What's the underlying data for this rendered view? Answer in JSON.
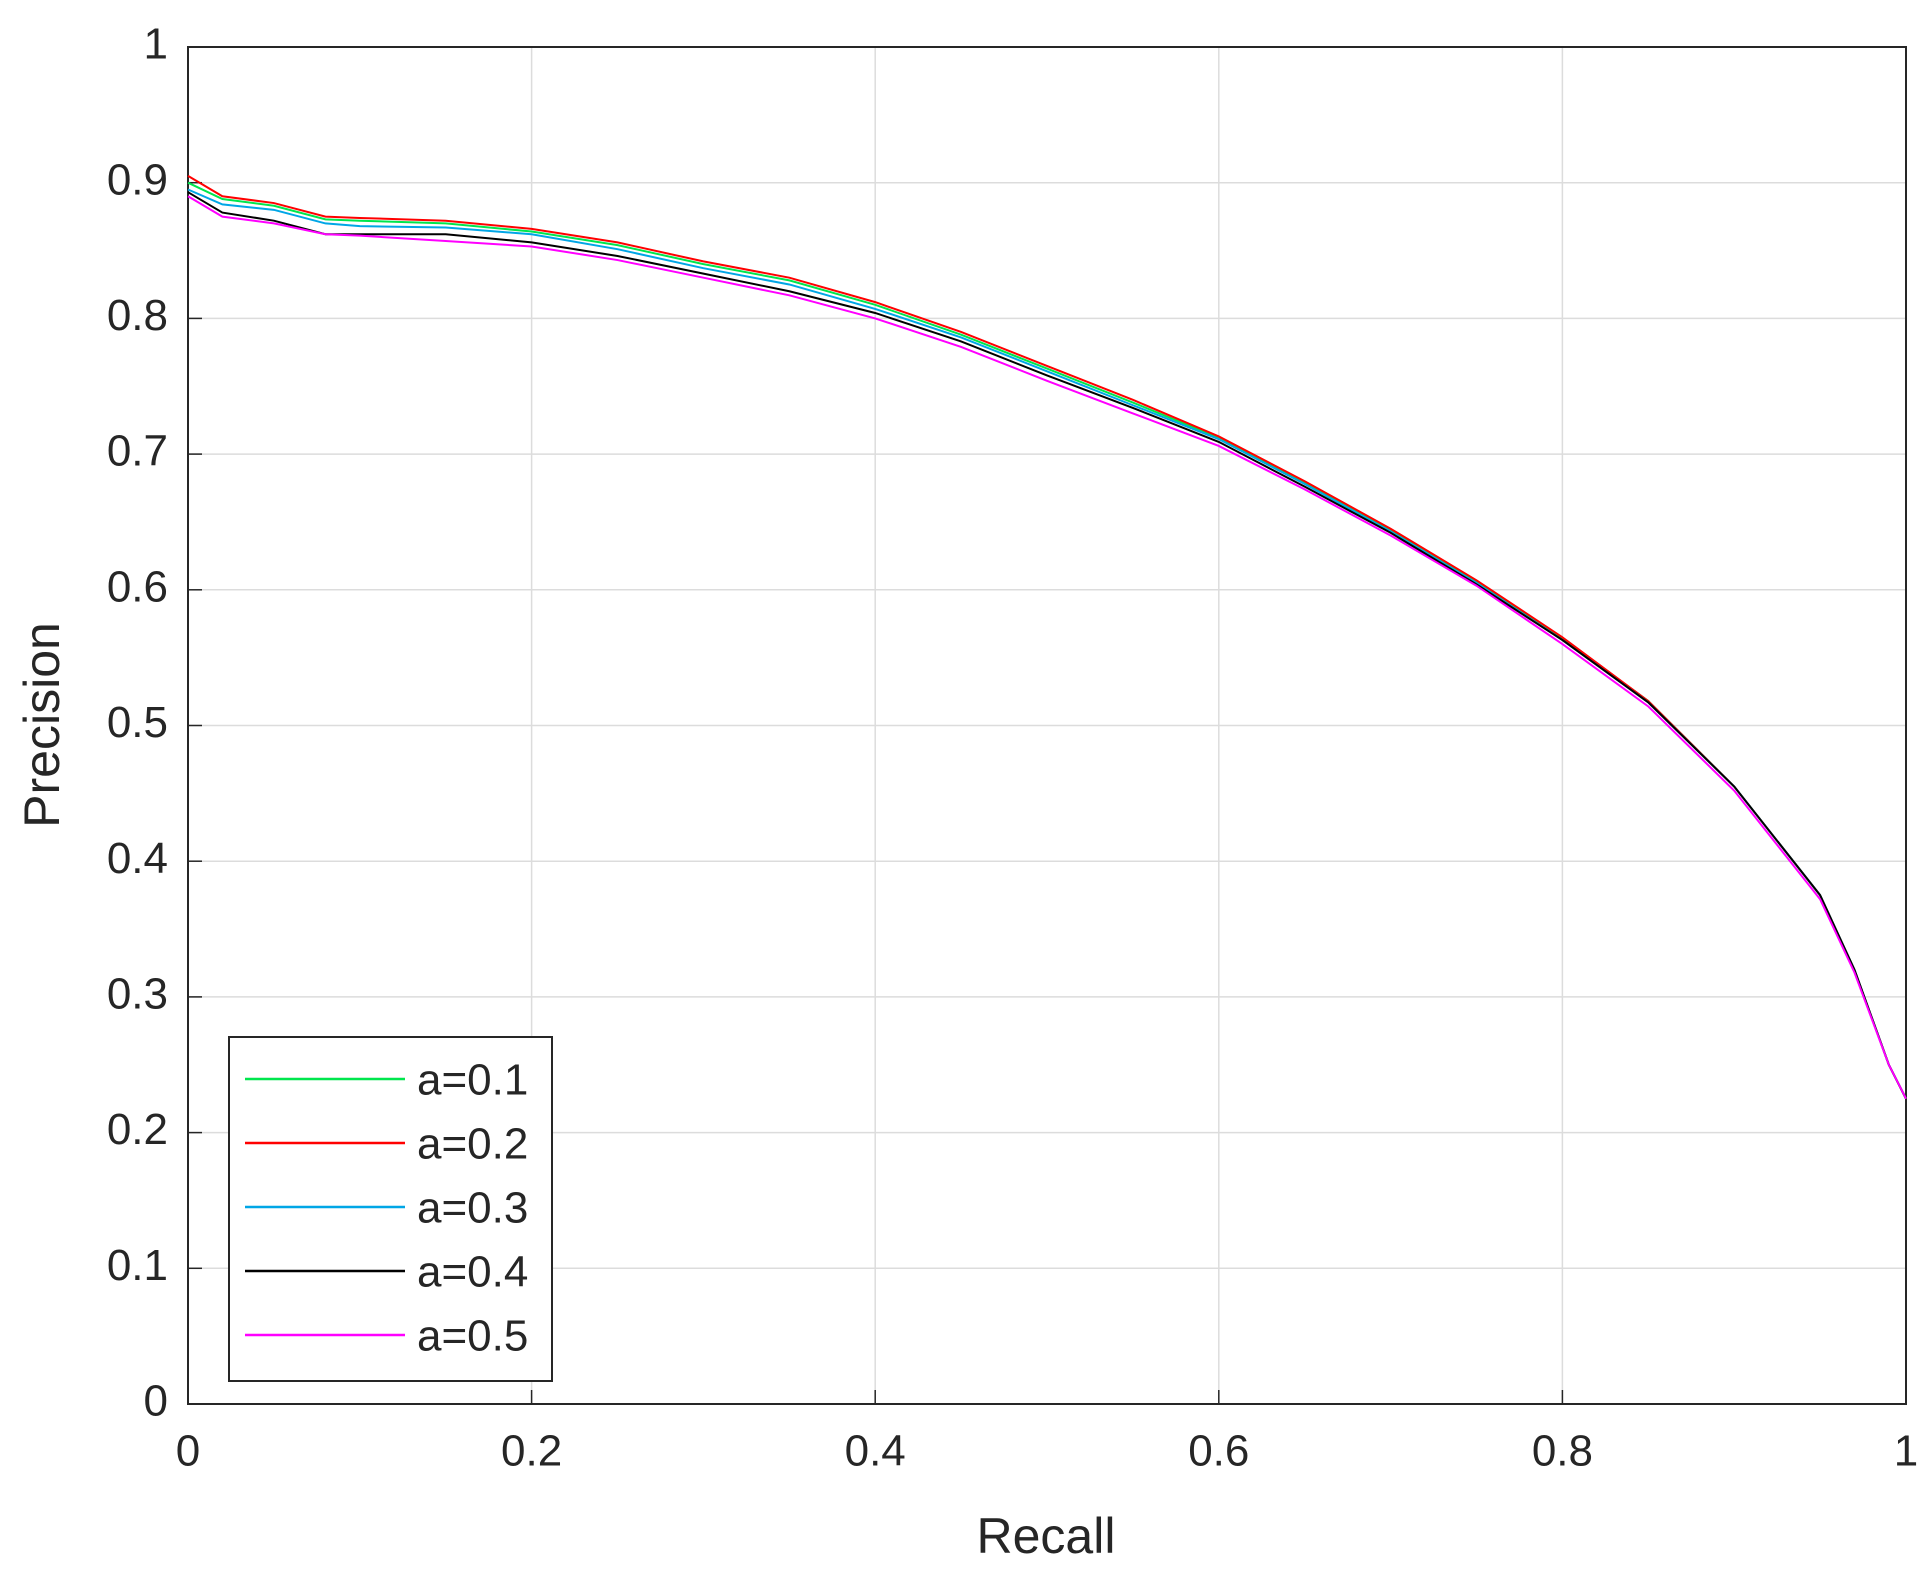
{
  "chart_data": {
    "type": "line",
    "xlabel": "Recall",
    "ylabel": "Precision",
    "x": [
      0,
      0.02,
      0.05,
      0.08,
      0.1,
      0.15,
      0.2,
      0.25,
      0.3,
      0.35,
      0.4,
      0.45,
      0.5,
      0.55,
      0.6,
      0.65,
      0.7,
      0.75,
      0.8,
      0.85,
      0.9,
      0.95,
      0.97,
      0.99,
      1
    ],
    "series": [
      {
        "name": "a=0.1",
        "color": "#00e64d",
        "values": [
          0.9,
          0.888,
          0.883,
          0.873,
          0.872,
          0.87,
          0.864,
          0.854,
          0.84,
          0.828,
          0.81,
          0.788,
          0.763,
          0.738,
          0.712,
          0.679,
          0.644,
          0.606,
          0.564,
          0.518,
          0.455,
          0.375,
          0.32,
          0.25,
          0.225
        ]
      },
      {
        "name": "a=0.2",
        "color": "#ff0000",
        "values": [
          0.905,
          0.89,
          0.885,
          0.875,
          0.874,
          0.872,
          0.866,
          0.856,
          0.842,
          0.83,
          0.812,
          0.79,
          0.765,
          0.74,
          0.713,
          0.68,
          0.645,
          0.607,
          0.565,
          0.518,
          0.455,
          0.375,
          0.32,
          0.25,
          0.225
        ]
      },
      {
        "name": "a=0.3",
        "color": "#00a6e6",
        "values": [
          0.895,
          0.884,
          0.88,
          0.87,
          0.868,
          0.867,
          0.862,
          0.851,
          0.837,
          0.825,
          0.807,
          0.786,
          0.761,
          0.736,
          0.711,
          0.678,
          0.643,
          0.605,
          0.563,
          0.517,
          0.455,
          0.375,
          0.32,
          0.25,
          0.225
        ]
      },
      {
        "name": "a=0.4",
        "color": "#000000",
        "values": [
          0.893,
          0.878,
          0.872,
          0.862,
          0.862,
          0.862,
          0.856,
          0.846,
          0.833,
          0.82,
          0.804,
          0.783,
          0.758,
          0.734,
          0.709,
          0.676,
          0.642,
          0.604,
          0.563,
          0.517,
          0.455,
          0.375,
          0.32,
          0.25,
          0.225
        ]
      },
      {
        "name": "a=0.5",
        "color": "#ff00ff",
        "values": [
          0.89,
          0.875,
          0.87,
          0.862,
          0.861,
          0.857,
          0.853,
          0.843,
          0.83,
          0.817,
          0.8,
          0.779,
          0.754,
          0.73,
          0.706,
          0.674,
          0.64,
          0.603,
          0.56,
          0.514,
          0.452,
          0.372,
          0.318,
          0.25,
          0.225
        ]
      }
    ],
    "xlim": [
      0,
      1
    ],
    "ylim": [
      0,
      1
    ],
    "xticks": [
      0,
      0.2,
      0.4,
      0.6,
      0.8,
      1
    ],
    "yticks": [
      0,
      0.1,
      0.2,
      0.3,
      0.4,
      0.5,
      0.6,
      0.7,
      0.8,
      0.9,
      1
    ],
    "grid": true,
    "legend": "lower left"
  }
}
